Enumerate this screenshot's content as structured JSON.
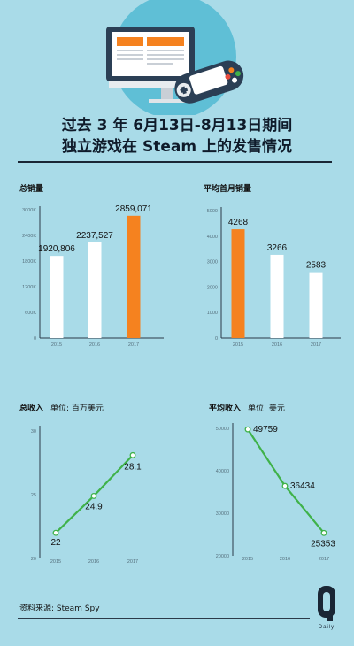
{
  "title": {
    "line1": "过去 3 年 6月13日-8月13日期间",
    "line2": "独立游戏在 Steam 上的发售情况"
  },
  "source": "资料来源:  Steam Spy",
  "logo": {
    "letter": "Q",
    "caption": "Daily"
  },
  "colors": {
    "background": "#a9dbe8",
    "bar_default": "#ffffff",
    "bar_highlight": "#f5821f",
    "line": "#3fb24a",
    "title": "#0f1b2a"
  },
  "chart_data": [
    {
      "id": "total-sales",
      "type": "bar",
      "title": "总销量",
      "categories": [
        "2015",
        "2016",
        "2017"
      ],
      "values": [
        1920806,
        2237527,
        2859071
      ],
      "value_labels": [
        "1920,806",
        "2237,527",
        "2859,071"
      ],
      "highlight_index": 2,
      "yticks": [
        "0",
        "600K",
        "1200K",
        "1800K",
        "2400K",
        "3000K"
      ],
      "ylim": [
        0,
        3000000
      ]
    },
    {
      "id": "avg-first-month-sales",
      "type": "bar",
      "title": "平均首月销量",
      "categories": [
        "2015",
        "2016",
        "2017"
      ],
      "values": [
        4268,
        3266,
        2583
      ],
      "value_labels": [
        "4268",
        "3266",
        "2583"
      ],
      "highlight_index": 0,
      "yticks": [
        "0",
        "1000",
        "2000",
        "3000",
        "4000",
        "5000"
      ],
      "ylim": [
        0,
        5000
      ]
    },
    {
      "id": "total-revenue",
      "type": "line",
      "title": "总收入",
      "unit": "单位:  百万美元",
      "categories": [
        "2015",
        "2016",
        "2017"
      ],
      "values": [
        22,
        24.9,
        28.1
      ],
      "value_labels": [
        "22",
        "24.9",
        "28.1"
      ],
      "yticks": [
        "20",
        "25",
        "30"
      ],
      "ylim": [
        20,
        30
      ]
    },
    {
      "id": "avg-revenue",
      "type": "line",
      "title": "平均收入",
      "unit": "单位:  美元",
      "categories": [
        "2015",
        "2016",
        "2017"
      ],
      "values": [
        49759,
        36434,
        25353
      ],
      "value_labels": [
        "49759",
        "36434",
        "25353"
      ],
      "yticks": [
        "20000",
        "30000",
        "40000",
        "50000"
      ],
      "ylim": [
        20000,
        50000
      ]
    }
  ]
}
